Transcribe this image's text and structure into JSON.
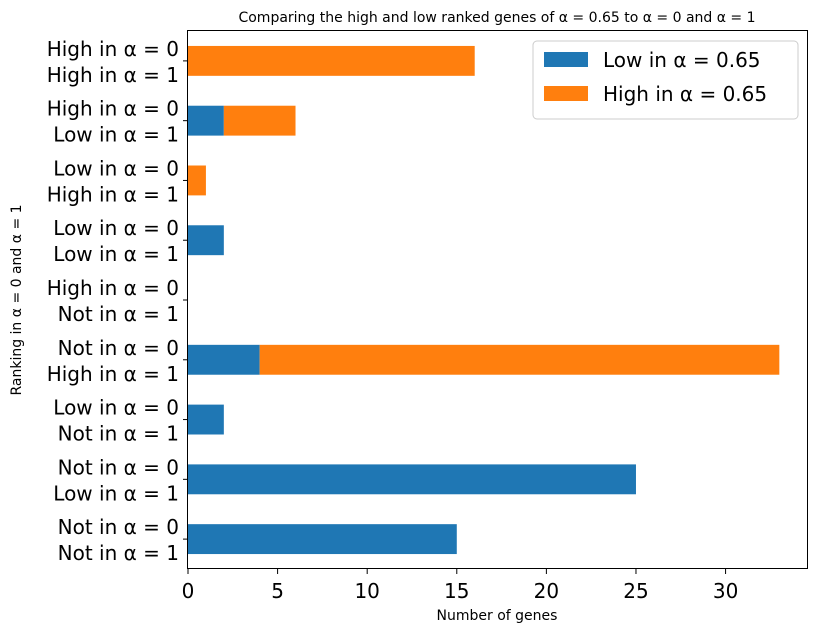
{
  "chart_data": {
    "type": "bar",
    "orientation": "horizontal",
    "stacked": true,
    "title": "Comparing the high and low ranked genes of α = 0.65 to α = 0 and α = 1",
    "xlabel": "Number of genes",
    "ylabel": "Ranking in α = 0 and α = 1",
    "xlim": [
      0,
      34.6
    ],
    "xticks": [
      0,
      5,
      10,
      15,
      20,
      25,
      30
    ],
    "categories": [
      [
        "High in α = 0",
        "High in α = 1"
      ],
      [
        "High in α = 0",
        "Low in α = 1"
      ],
      [
        "Low in α = 0",
        "High in α = 1"
      ],
      [
        "Low in α = 0",
        "Low in α = 1"
      ],
      [
        "High in α = 0",
        "Not in α = 1"
      ],
      [
        "Not in α = 0",
        "High in α = 1"
      ],
      [
        "Low in α = 0",
        "Not in α = 1"
      ],
      [
        "Not in α = 0",
        "Low in α = 1"
      ],
      [
        "Not in α = 0",
        "Not in α = 1"
      ]
    ],
    "series": [
      {
        "name": "Low in α = 0.65",
        "color": "#1f77b4",
        "values": [
          0,
          2,
          0,
          2,
          0,
          4,
          2,
          25,
          15
        ]
      },
      {
        "name": "High in α = 0.65",
        "color": "#ff7f0e",
        "values": [
          16,
          4,
          1,
          0,
          0,
          29,
          0,
          0,
          0
        ]
      }
    ],
    "grid": false,
    "legend_position": "top-right"
  }
}
